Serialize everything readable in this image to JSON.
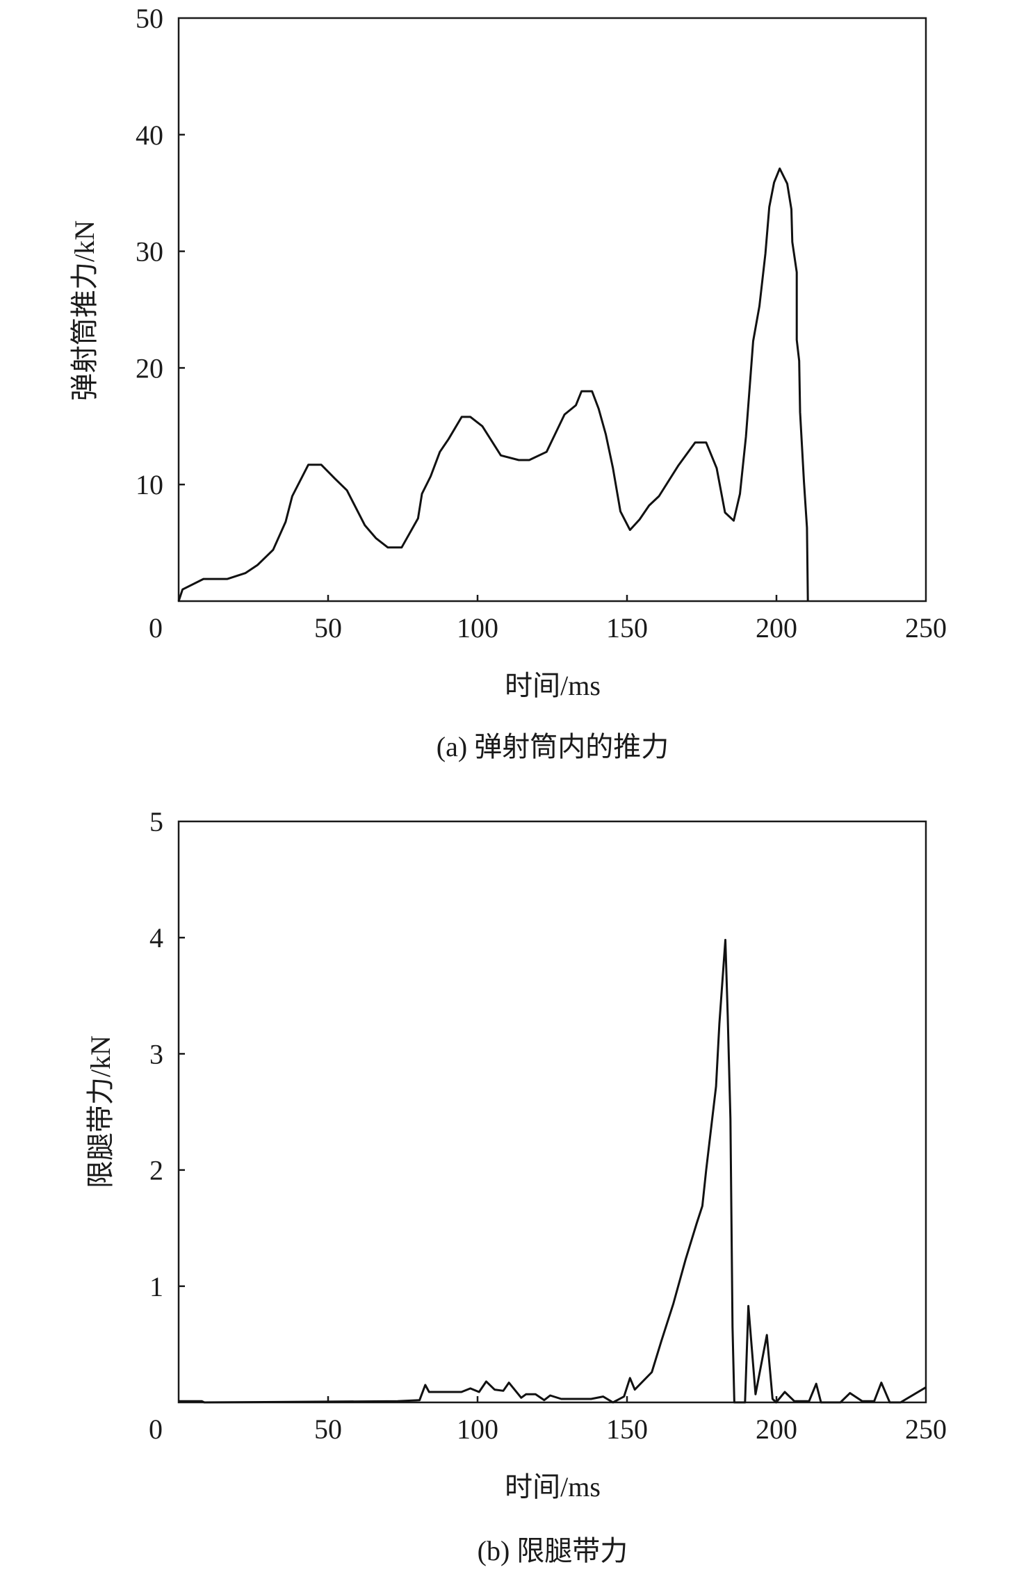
{
  "chart_data": [
    {
      "type": "line",
      "title": "",
      "caption": "(a) 弹射筒内的推力",
      "xlabel": "时间/ms",
      "ylabel": "弹射筒推力/kN",
      "xlim": [
        0,
        250
      ],
      "ylim": [
        0,
        50
      ],
      "xticks": [
        0,
        50,
        100,
        150,
        200,
        250
      ],
      "yticks": [
        10,
        20,
        30,
        40,
        50
      ],
      "grid": false,
      "line_color": "#111111",
      "series": [
        {
          "name": "弹射筒推力",
          "x": [
            0,
            1.3,
            8.3,
            16.3,
            22.3,
            26.4,
            31.6,
            35.8,
            38,
            43.4,
            47.7,
            52.3,
            56.3,
            62.3,
            66,
            70,
            74.6,
            80.1,
            81.4,
            84.3,
            87.4,
            90.3,
            94.7,
            97.6,
            101.6,
            107.8,
            113.8,
            117.3,
            123.1,
            125.9,
            129.1,
            132.9,
            134.8,
            138.3,
            140.5,
            142.9,
            145.3,
            147.8,
            151,
            154.2,
            157.4,
            160.7,
            167.1,
            172.8,
            176.5,
            180,
            182.8,
            185.7,
            187.8,
            189.8,
            192.2,
            194.3,
            196.3,
            197.6,
            199.2,
            201.1,
            203.6,
            205,
            205.3,
            206.8,
            206.8,
            207.6,
            207.9,
            209.2,
            210.2,
            210.5
          ],
          "y": [
            0,
            1.0,
            1.9,
            1.9,
            2.4,
            3.1,
            4.4,
            6.8,
            9.0,
            11.7,
            11.7,
            10.5,
            9.5,
            6.5,
            5.4,
            4.6,
            4.6,
            7.1,
            9.2,
            10.7,
            12.8,
            13.9,
            15.8,
            15.8,
            15.0,
            12.5,
            12.1,
            12.1,
            12.8,
            14.3,
            16.0,
            16.8,
            18.0,
            18.0,
            16.5,
            14.3,
            11.4,
            7.7,
            6.1,
            7.0,
            8.2,
            9.0,
            11.6,
            13.6,
            13.6,
            11.4,
            7.6,
            6.9,
            9.2,
            14.1,
            22.3,
            25.3,
            29.8,
            33.8,
            35.9,
            37.1,
            35.8,
            33.6,
            30.8,
            28.2,
            22.4,
            20.6,
            16.2,
            10.2,
            6.3,
            0
          ]
        }
      ]
    },
    {
      "type": "line",
      "title": "",
      "caption": "(b) 限腿带力",
      "xlabel": "时间/ms",
      "ylabel": "限腿带力/kN",
      "xlim": [
        0,
        250
      ],
      "ylim": [
        0,
        5
      ],
      "xticks": [
        0,
        50,
        100,
        150,
        200,
        250
      ],
      "yticks": [
        1,
        2,
        3,
        4,
        5
      ],
      "grid": false,
      "line_color": "#111111",
      "series": [
        {
          "name": "限腿带力",
          "x": [
            0,
            7.8,
            8.6,
            73.3,
            80.6,
            82.5,
            83.8,
            94.6,
            97.6,
            100.5,
            102.9,
            105.7,
            108.6,
            110.5,
            114.6,
            116.2,
            119.4,
            122.3,
            124.3,
            128,
            138,
            142,
            145.3,
            149,
            151,
            152.6,
            158.3,
            161.5,
            165.5,
            169.6,
            173.3,
            175.2,
            176.5,
            179.8,
            180.9,
            182.9,
            183.7,
            184.6,
            185.3,
            185.9,
            189.5,
            190.6,
            193,
            196.8,
            198.7,
            199.9,
            202.8,
            206,
            210.9,
            213.3,
            214.9,
            221.4,
            224.6,
            228.7,
            232.7,
            235.1,
            237.9,
            241.5,
            250
          ],
          "y": [
            0.01,
            0.01,
            0,
            0.01,
            0.02,
            0.15,
            0.09,
            0.09,
            0.12,
            0.09,
            0.18,
            0.11,
            0.1,
            0.17,
            0.04,
            0.07,
            0.07,
            0.02,
            0.06,
            0.03,
            0.03,
            0.05,
            0,
            0.05,
            0.21,
            0.11,
            0.26,
            0.53,
            0.85,
            1.23,
            1.54,
            1.69,
            2.0,
            2.72,
            3.26,
            3.98,
            3.33,
            2.44,
            0.65,
            0,
            0,
            0.83,
            0.07,
            0.58,
            0.03,
            0,
            0.09,
            0.01,
            0.01,
            0.16,
            0,
            0,
            0.08,
            0.01,
            0.01,
            0.17,
            0,
            0,
            0.13
          ]
        }
      ]
    }
  ]
}
